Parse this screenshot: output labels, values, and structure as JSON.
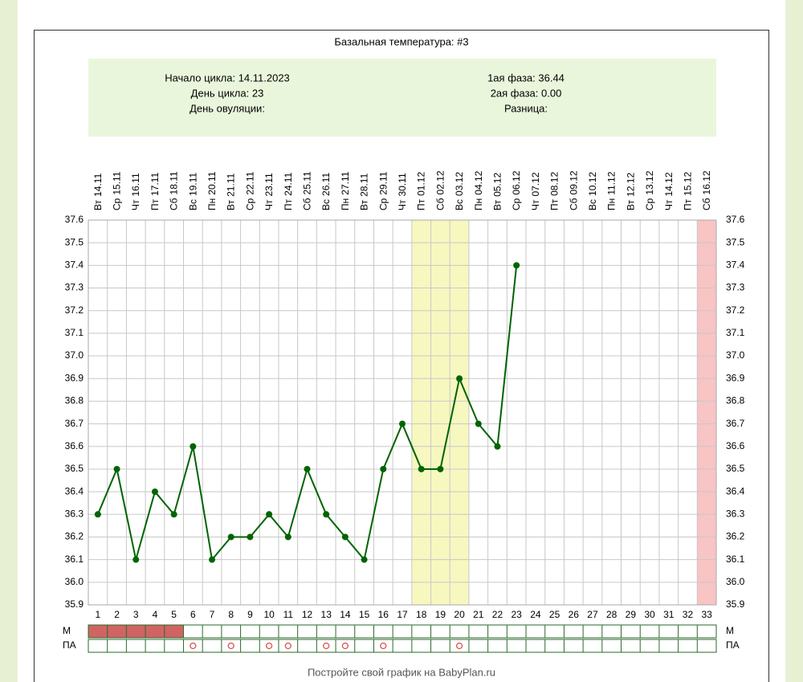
{
  "chart_data": {
    "type": "line",
    "title": "Базальная температура: #3",
    "info": {
      "left": [
        "Начало цикла: 14.11.2023",
        "День цикла: 23",
        "День овуляции:"
      ],
      "right": [
        "1ая фаза: 36.44",
        "2ая фаза: 0.00",
        "Разница:"
      ]
    },
    "x": [
      1,
      2,
      3,
      4,
      5,
      6,
      7,
      8,
      9,
      10,
      11,
      12,
      13,
      14,
      15,
      16,
      17,
      18,
      19,
      20,
      21,
      22,
      23,
      24,
      25,
      26,
      27,
      28,
      29,
      30,
      31,
      32,
      33
    ],
    "xlim": [
      0.5,
      33.5
    ],
    "weekdays": [
      "Вт",
      "Ср",
      "Чт",
      "Пт",
      "Сб",
      "Вс",
      "Пн",
      "Вт",
      "Ср",
      "Чт",
      "Пт",
      "Сб",
      "Вс",
      "Пн",
      "Вт",
      "Ср",
      "Чт",
      "Пт",
      "Сб",
      "Вс",
      "Пн",
      "Вт",
      "Ср",
      "Чт",
      "Пт",
      "Сб",
      "Вс",
      "Пн",
      "Вт",
      "Ср",
      "Чт",
      "Пт",
      "Сб"
    ],
    "dates": [
      "14.11",
      "15.11",
      "16.11",
      "17.11",
      "18.11",
      "19.11",
      "20.11",
      "21.11",
      "22.11",
      "23.11",
      "24.11",
      "25.11",
      "26.11",
      "27.11",
      "28.11",
      "29.11",
      "30.11",
      "01.12",
      "02.12",
      "03.12",
      "04.12",
      "05.12",
      "06.12",
      "07.12",
      "08.12",
      "09.12",
      "10.12",
      "11.12",
      "12.12",
      "13.12",
      "14.12",
      "15.12",
      "16.12"
    ],
    "series": [
      {
        "color": "#006400",
        "values": [
          36.3,
          36.5,
          36.1,
          36.4,
          36.3,
          36.6,
          36.1,
          36.2,
          36.2,
          36.3,
          36.2,
          36.5,
          36.3,
          36.2,
          36.1,
          36.5,
          36.7,
          36.5,
          36.5,
          36.9,
          36.7,
          36.6,
          37.4,
          null,
          null,
          null,
          null,
          null,
          null,
          null,
          null,
          null,
          null
        ]
      }
    ],
    "ylim": [
      35.9,
      37.6
    ],
    "yticks": [
      35.9,
      {
        "value": 36,
        "label": "36.0"
      },
      36.1,
      36.2,
      36.3,
      36.4,
      36.5,
      36.6,
      36.7,
      36.8,
      36.9,
      {
        "value": 37,
        "label": "37.0"
      },
      37.1,
      37.2,
      37.3,
      37.4,
      37.5,
      37.6
    ],
    "grid": true,
    "highlight_days": {
      "color": "#f7f7c0",
      "days": [
        18,
        19,
        20
      ]
    },
    "marked_days": {
      "color": "#f8c4c4",
      "days": [
        33
      ]
    },
    "rows": [
      {
        "label": "М",
        "color": "#d06464",
        "days": [
          1,
          2,
          3,
          4,
          5
        ]
      },
      {
        "label": "ПА",
        "color": "#e05050",
        "days": [
          6,
          8,
          10,
          11,
          13,
          14,
          16,
          20
        ]
      }
    ],
    "footer": "Постройте свой график на BabyPlan.ru"
  }
}
